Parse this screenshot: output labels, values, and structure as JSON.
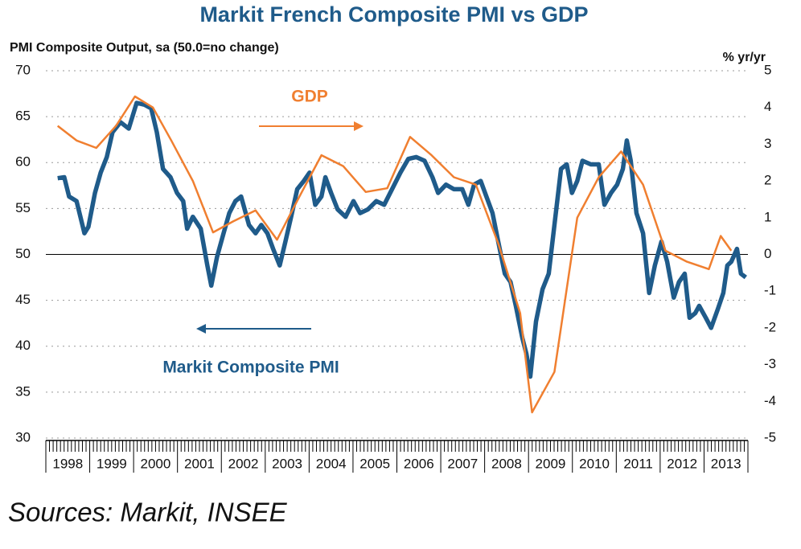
{
  "chart_data": {
    "type": "line",
    "title": "Markit French Composite PMI vs GDP",
    "y_axis_label": "PMI Composite Output, sa (50.0=no change)",
    "y2_axis_label": "% yr/yr",
    "source": "Sources: Markit, INSEE",
    "xlim": [
      1998,
      2014
    ],
    "xticks": [
      {
        "value": 1998.5,
        "label": "1998"
      },
      {
        "value": 1999.5,
        "label": "1999"
      },
      {
        "value": 2000.5,
        "label": "2000"
      },
      {
        "value": 2001.5,
        "label": "2001"
      },
      {
        "value": 2002.5,
        "label": "2002"
      },
      {
        "value": 2003.5,
        "label": "2003"
      },
      {
        "value": 2004.5,
        "label": "2004"
      },
      {
        "value": 2005.5,
        "label": "2005"
      },
      {
        "value": 2006.5,
        "label": "2006"
      },
      {
        "value": 2007.5,
        "label": "2007"
      },
      {
        "value": 2008.5,
        "label": "2008"
      },
      {
        "value": 2009.5,
        "label": "2009"
      },
      {
        "value": 2010.5,
        "label": "2010"
      },
      {
        "value": 2011.5,
        "label": "2011"
      },
      {
        "value": 2012.5,
        "label": "2012"
      },
      {
        "value": 2013.5,
        "label": "2013"
      }
    ],
    "ylim": [
      30,
      70
    ],
    "yticks": [
      30,
      35,
      40,
      45,
      50,
      55,
      60,
      65,
      70
    ],
    "y2lim": [
      -5,
      5
    ],
    "y2ticks": [
      -5,
      -4,
      -3,
      -2,
      -1,
      0,
      1,
      2,
      3,
      4,
      5
    ],
    "grid": true,
    "reference_line": 50,
    "series": [
      {
        "name": "Markit Composite PMI",
        "color": "#1f5b8a",
        "x": [
          1998.27,
          1998.42,
          1998.53,
          1998.7,
          1998.88,
          1998.97,
          1999.12,
          1999.25,
          1999.39,
          1999.52,
          1999.7,
          1999.89,
          2000.07,
          2000.25,
          2000.4,
          2000.53,
          2000.67,
          2000.84,
          2000.99,
          2001.13,
          2001.22,
          2001.35,
          2001.53,
          2001.68,
          2001.77,
          2001.9,
          2002.05,
          2002.18,
          2002.32,
          2002.45,
          2002.63,
          2002.78,
          2002.91,
          2003.05,
          2003.18,
          2003.33,
          2003.46,
          2003.59,
          2003.73,
          2003.88,
          2004.01,
          2004.14,
          2004.28,
          2004.37,
          2004.5,
          2004.65,
          2004.83,
          2005.01,
          2005.16,
          2005.34,
          2005.53,
          2005.71,
          2005.89,
          2006.08,
          2006.26,
          2006.44,
          2006.63,
          2006.81,
          2006.94,
          2007.12,
          2007.3,
          2007.49,
          2007.63,
          2007.76,
          2007.91,
          2008.04,
          2008.18,
          2008.31,
          2008.46,
          2008.59,
          2008.71,
          2008.86,
          2008.95,
          2009.04,
          2009.17,
          2009.32,
          2009.46,
          2009.59,
          2009.74,
          2009.87,
          2009.99,
          2010.11,
          2010.23,
          2010.42,
          2010.6,
          2010.73,
          2010.88,
          2011.02,
          2011.15,
          2011.24,
          2011.33,
          2011.46,
          2011.61,
          2011.75,
          2011.88,
          2012.03,
          2012.16,
          2012.31,
          2012.43,
          2012.56,
          2012.67,
          2012.8,
          2012.89,
          2013.04,
          2013.16,
          2013.31,
          2013.44,
          2013.53,
          2013.62,
          2013.75,
          2013.84,
          2013.95
        ],
        "values": [
          58.3,
          58.4,
          56.3,
          55.8,
          52.3,
          53,
          56.7,
          58.9,
          60.6,
          63.3,
          64.4,
          63.7,
          66.5,
          66.3,
          65.9,
          63.3,
          59.3,
          58.4,
          56.7,
          55.8,
          52.8,
          54.1,
          52.8,
          48.8,
          46.6,
          49.7,
          52.3,
          54.5,
          55.8,
          56.3,
          53.2,
          52.3,
          53.2,
          52.3,
          50.6,
          48.8,
          51.4,
          54.1,
          57.1,
          58,
          58.9,
          55.4,
          56.3,
          58.4,
          56.7,
          54.9,
          54.1,
          55.8,
          54.5,
          54.9,
          55.8,
          55.4,
          57.1,
          58.9,
          60.4,
          60.6,
          60.2,
          58.4,
          56.7,
          57.6,
          57.1,
          57.1,
          55.4,
          57.6,
          58,
          56.3,
          54.5,
          51.4,
          47.9,
          47,
          44.4,
          40.9,
          39.2,
          36.7,
          42.7,
          46.2,
          47.9,
          53.2,
          59.3,
          59.8,
          56.7,
          58,
          60.2,
          59.8,
          59.8,
          55.4,
          56.7,
          57.6,
          59.3,
          62.4,
          60.2,
          54.5,
          52.3,
          45.8,
          48.8,
          51.4,
          49.2,
          45.3,
          47,
          47.9,
          43.1,
          43.6,
          44.4,
          43.1,
          42,
          44,
          45.8,
          48.8,
          49.2,
          50.6,
          47.9,
          47.5
        ]
      },
      {
        "name": "GDP",
        "color": "#f07f30",
        "axis": "y2",
        "x": [
          1998.27,
          1998.7,
          1999.15,
          1999.6,
          2000.03,
          2000.44,
          2000.86,
          2001.35,
          2001.81,
          2002.27,
          2002.78,
          2003.27,
          2003.79,
          2004.28,
          2004.78,
          2005.29,
          2005.78,
          2006.3,
          2006.79,
          2007.3,
          2007.8,
          2008.31,
          2008.81,
          2009.08,
          2009.59,
          2010.11,
          2010.6,
          2011.11,
          2011.61,
          2012.12,
          2012.61,
          2013.11,
          2013.38,
          2013.62
        ],
        "values": [
          3.5,
          3.1,
          2.9,
          3.5,
          4.3,
          4.0,
          3.1,
          2.0,
          0.6,
          0.9,
          1.2,
          0.4,
          1.6,
          2.7,
          2.4,
          1.7,
          1.8,
          3.2,
          2.7,
          2.1,
          1.9,
          0.3,
          -1.6,
          -4.3,
          -3.2,
          1.0,
          2.1,
          2.8,
          1.9,
          0.1,
          -0.2,
          -0.4,
          0.5,
          0.1
        ]
      }
    ],
    "annotations": [
      {
        "text": "GDP",
        "color": "#f07f30"
      },
      {
        "text": "Markit Composite PMI",
        "color": "#1f5b8a"
      }
    ]
  }
}
